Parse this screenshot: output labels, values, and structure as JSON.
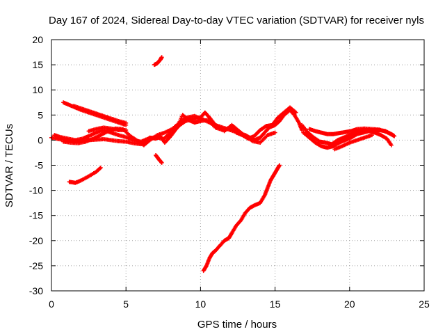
{
  "chart_data": {
    "type": "scatter",
    "title": "Day 167 of 2024, Sidereal Day-to-day VTEC variation (SDTVAR) for receiver nyls",
    "xlabel": "GPS time / hours",
    "ylabel": "SDTVAR / TECUs",
    "xlim": [
      0,
      25
    ],
    "ylim": [
      -30,
      20
    ],
    "xticks": [
      0,
      5,
      10,
      15,
      20,
      25
    ],
    "yticks": [
      -30,
      -25,
      -20,
      -15,
      -10,
      -5,
      0,
      5,
      10,
      15,
      20
    ],
    "grid": true,
    "marker_color": "#ff0000",
    "series": [
      {
        "name": "trace-main-1",
        "points": [
          [
            0,
            0.5
          ],
          [
            0.5,
            0.2
          ],
          [
            1,
            0
          ],
          [
            1.5,
            -0.3
          ],
          [
            2,
            -0.2
          ],
          [
            2.5,
            0
          ],
          [
            3,
            0.1
          ],
          [
            3.5,
            0.2
          ],
          [
            4,
            0
          ],
          [
            4.5,
            -0.2
          ],
          [
            5,
            -0.3
          ],
          [
            5.5,
            -0.6
          ],
          [
            6,
            -0.8
          ],
          [
            6.3,
            -0.3
          ],
          [
            6.6,
            0.5
          ],
          [
            7,
            0.3
          ],
          [
            7.3,
            0.8
          ],
          [
            7.6,
            -0.5
          ],
          [
            8,
            0.8
          ],
          [
            8.3,
            2
          ],
          [
            8.6,
            3
          ],
          [
            9,
            3.8
          ],
          [
            9.5,
            4.2
          ],
          [
            10,
            4.5
          ],
          [
            10.3,
            5.5
          ],
          [
            10.6,
            4.5
          ],
          [
            11,
            3
          ],
          [
            11.5,
            2.5
          ],
          [
            12,
            2
          ],
          [
            12.5,
            1.5
          ],
          [
            13,
            1
          ],
          [
            13.3,
            0.5
          ],
          [
            13.6,
            0
          ],
          [
            14,
            0.5
          ],
          [
            14.3,
            1.5
          ],
          [
            14.6,
            2.5
          ],
          [
            15,
            3
          ],
          [
            15.3,
            3.8
          ],
          [
            15.6,
            5
          ],
          [
            16,
            6
          ],
          [
            16.3,
            5
          ],
          [
            16.6,
            3.5
          ],
          [
            16.8,
            2
          ]
        ]
      },
      {
        "name": "trace-main-2",
        "points": [
          [
            0.2,
            1
          ],
          [
            0.6,
            0.6
          ],
          [
            1.1,
            0.3
          ],
          [
            1.6,
            0
          ],
          [
            2.1,
            0.3
          ],
          [
            2.5,
            0.8
          ],
          [
            3,
            1.5
          ],
          [
            3.5,
            2
          ],
          [
            4,
            1.5
          ],
          [
            4.5,
            1
          ],
          [
            5,
            0.6
          ],
          [
            5.5,
            0
          ],
          [
            6,
            -0.3
          ],
          [
            6.5,
            0.3
          ],
          [
            7,
            0.6
          ],
          [
            7.5,
            0.2
          ],
          [
            8,
            1.5
          ],
          [
            8.5,
            3
          ],
          [
            8.8,
            5
          ],
          [
            9.2,
            4
          ],
          [
            9.6,
            3.5
          ],
          [
            10,
            3.8
          ],
          [
            10.5,
            4
          ],
          [
            11,
            2.5
          ],
          [
            11.5,
            2
          ],
          [
            12,
            2.5
          ],
          [
            12.4,
            1.5
          ],
          [
            12.8,
            1
          ],
          [
            13.2,
            0.3
          ],
          [
            13.6,
            0.8
          ],
          [
            14,
            2
          ],
          [
            14.4,
            2.8
          ],
          [
            14.8,
            3
          ],
          [
            15.2,
            4.5
          ],
          [
            15.6,
            5.5
          ],
          [
            16,
            6.5
          ],
          [
            16.4,
            5.5
          ]
        ]
      },
      {
        "name": "trace-main-3",
        "points": [
          [
            0.8,
            -0.3
          ],
          [
            1.3,
            -0.5
          ],
          [
            1.8,
            -0.6
          ],
          [
            2.3,
            -0.3
          ],
          [
            2.8,
            0.3
          ],
          [
            3.3,
            1
          ],
          [
            3.8,
            1.8
          ],
          [
            4.3,
            2.3
          ],
          [
            4.8,
            2.2
          ],
          [
            5.3,
            0.8
          ],
          [
            5.8,
            -0.2
          ],
          [
            6.2,
            -1
          ],
          [
            6.6,
            0
          ],
          [
            7.1,
            1
          ],
          [
            7.6,
            1.5
          ],
          [
            8.1,
            2.2
          ],
          [
            8.6,
            3.5
          ],
          [
            9.1,
            4.5
          ],
          [
            9.6,
            4.8
          ],
          [
            10.1,
            4.2
          ],
          [
            10.6,
            3.5
          ],
          [
            11.1,
            2.8
          ],
          [
            11.6,
            1.8
          ],
          [
            12.1,
            3
          ],
          [
            12.5,
            2
          ],
          [
            13,
            0.8
          ],
          [
            13.5,
            -0.2
          ],
          [
            14,
            -0.5
          ],
          [
            14.5,
            1
          ],
          [
            15,
            1.5
          ]
        ]
      },
      {
        "name": "trace-main-4",
        "points": [
          [
            2.5,
            1.8
          ],
          [
            3,
            2.2
          ],
          [
            3.5,
            2.5
          ],
          [
            4,
            2.3
          ],
          [
            4.5,
            2
          ],
          [
            5,
            2
          ]
        ]
      },
      {
        "name": "trace-descending",
        "points": [
          [
            0.8,
            7.5
          ],
          [
            1.2,
            7
          ],
          [
            1.6,
            6.5
          ],
          [
            2,
            6
          ],
          [
            2.5,
            5.5
          ],
          [
            3,
            5
          ],
          [
            3.5,
            4.5
          ],
          [
            4,
            4
          ],
          [
            4.5,
            3.5
          ],
          [
            5,
            3
          ]
        ]
      },
      {
        "name": "trace-descending-2",
        "points": [
          [
            1.5,
            6.8
          ],
          [
            2,
            6.3
          ],
          [
            2.5,
            5.8
          ],
          [
            3,
            5.3
          ],
          [
            3.5,
            4.8
          ],
          [
            4,
            4.3
          ],
          [
            4.5,
            3.8
          ],
          [
            5,
            3.4
          ]
        ]
      },
      {
        "name": "trace-neg-early",
        "points": [
          [
            1.2,
            -8.3
          ],
          [
            1.6,
            -8.5
          ],
          [
            2,
            -8
          ],
          [
            2.5,
            -7.2
          ],
          [
            3,
            -6.3
          ],
          [
            3.3,
            -5.5
          ]
        ]
      },
      {
        "name": "trace-short-high",
        "points": [
          [
            6.9,
            15
          ],
          [
            7.1,
            15.3
          ],
          [
            7.3,
            16
          ],
          [
            7.4,
            16.5
          ]
        ]
      },
      {
        "name": "trace-short-low",
        "points": [
          [
            7,
            -3
          ],
          [
            7.2,
            -3.8
          ],
          [
            7.4,
            -4.5
          ]
        ]
      },
      {
        "name": "trace-steep-rise",
        "points": [
          [
            10.2,
            -26
          ],
          [
            10.4,
            -25
          ],
          [
            10.6,
            -23.5
          ],
          [
            10.8,
            -22.5
          ],
          [
            11,
            -22
          ],
          [
            11.3,
            -21
          ],
          [
            11.6,
            -20
          ],
          [
            11.9,
            -19.5
          ],
          [
            12.1,
            -18.5
          ],
          [
            12.4,
            -17
          ],
          [
            12.7,
            -16
          ],
          [
            13,
            -14.5
          ],
          [
            13.3,
            -13.5
          ],
          [
            13.6,
            -13
          ],
          [
            14,
            -12.5
          ],
          [
            14.3,
            -11
          ],
          [
            14.5,
            -9.5
          ],
          [
            14.7,
            -8
          ],
          [
            14.9,
            -7
          ],
          [
            15.1,
            -6
          ],
          [
            15.3,
            -5
          ]
        ]
      },
      {
        "name": "trace-late-1",
        "points": [
          [
            16.8,
            3
          ],
          [
            17.2,
            1.5
          ],
          [
            17.6,
            0.5
          ],
          [
            18,
            -0.3
          ],
          [
            18.4,
            -0.5
          ],
          [
            18.8,
            -0.8
          ],
          [
            19.2,
            0
          ],
          [
            19.6,
            0.5
          ],
          [
            20,
            1
          ],
          [
            20.4,
            1.5
          ],
          [
            20.8,
            2
          ],
          [
            21.2,
            2
          ],
          [
            21.6,
            2
          ],
          [
            22,
            2
          ],
          [
            22.4,
            1.8
          ],
          [
            22.8,
            1.2
          ],
          [
            23,
            0.8
          ]
        ]
      },
      {
        "name": "trace-late-2",
        "points": [
          [
            16.9,
            1.5
          ],
          [
            17.3,
            0.5
          ],
          [
            17.7,
            -0.5
          ],
          [
            18.1,
            -1.2
          ],
          [
            18.5,
            -1.5
          ],
          [
            18.9,
            -1.2
          ],
          [
            19.3,
            -0.5
          ],
          [
            19.7,
            0
          ],
          [
            20.1,
            0.5
          ],
          [
            20.5,
            1.2
          ],
          [
            20.9,
            1.5
          ],
          [
            21.3,
            1.8
          ],
          [
            21.7,
            1.5
          ],
          [
            22.1,
            1
          ],
          [
            22.5,
            0.3
          ],
          [
            22.8,
            -1
          ]
        ]
      },
      {
        "name": "trace-late-3",
        "points": [
          [
            17.3,
            2.2
          ],
          [
            17.7,
            1.8
          ],
          [
            18.1,
            1.5
          ],
          [
            18.5,
            1.2
          ],
          [
            18.9,
            1.2
          ],
          [
            19.3,
            1.4
          ],
          [
            19.7,
            1.6
          ],
          [
            20.1,
            1.8
          ],
          [
            20.5,
            2.2
          ],
          [
            21,
            2.3
          ],
          [
            21.5,
            2.2
          ],
          [
            22,
            2.1
          ],
          [
            22.5,
            1.6
          ],
          [
            22.9,
            1
          ]
        ]
      },
      {
        "name": "trace-late-4",
        "points": [
          [
            19,
            -1.8
          ],
          [
            19.5,
            -1.2
          ],
          [
            20,
            -0.5
          ],
          [
            20.5,
            0
          ],
          [
            21,
            0.5
          ],
          [
            21.5,
            1
          ]
        ]
      }
    ]
  }
}
